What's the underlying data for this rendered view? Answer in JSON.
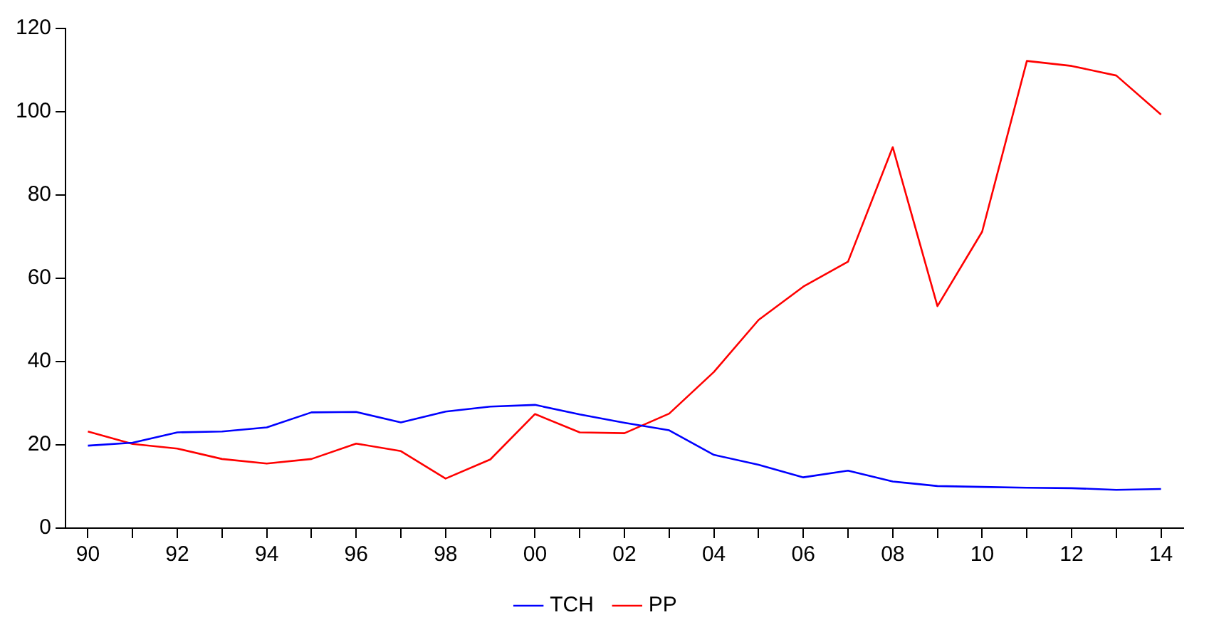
{
  "chart_data": {
    "type": "line",
    "categories": [
      "90",
      null,
      "92",
      null,
      "94",
      null,
      "96",
      null,
      "98",
      null,
      "00",
      null,
      "02",
      null,
      "04",
      null,
      "06",
      null,
      "08",
      null,
      "10",
      null,
      "12",
      null,
      "14"
    ],
    "series": [
      {
        "name": "TCH",
        "color": "#0000ff",
        "values": [
          19.8,
          20.5,
          23.0,
          23.2,
          24.2,
          27.8,
          27.9,
          25.4,
          28.0,
          29.2,
          29.6,
          27.3,
          25.3,
          23.5,
          17.6,
          15.2,
          12.2,
          13.8,
          11.2,
          10.1,
          9.9,
          9.7,
          9.6,
          9.2,
          9.4
        ]
      },
      {
        "name": "PP",
        "color": "#ff0000",
        "values": [
          23.2,
          20.2,
          19.1,
          16.6,
          15.5,
          16.6,
          20.3,
          18.5,
          11.9,
          16.5,
          27.4,
          23.0,
          22.8,
          27.5,
          37.5,
          50.0,
          58.0,
          64.0,
          91.5,
          53.3,
          71.2,
          112.2,
          111.0,
          108.7,
          99.3
        ]
      }
    ],
    "ylim": [
      0,
      120
    ],
    "yticks": [
      0,
      20,
      40,
      60,
      80,
      100,
      120
    ],
    "legend": "bottom",
    "marker": "none",
    "line_style": "solid"
  }
}
